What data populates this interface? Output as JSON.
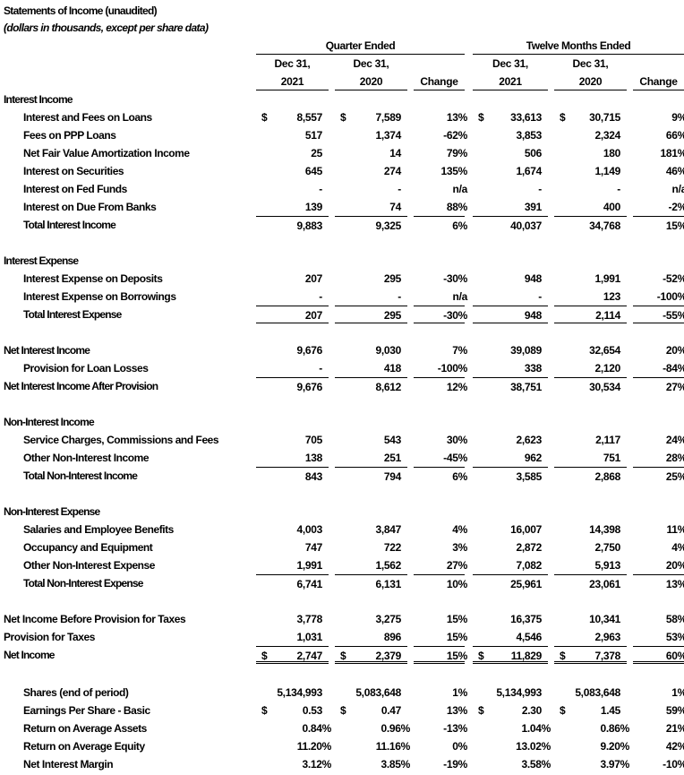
{
  "title": "Statements of Income (unaudited)",
  "subtitle": "(dollars in thousands, except per share data)",
  "header": {
    "groups": [
      "Quarter Ended",
      "Twelve Months Ended"
    ],
    "line1": [
      "Dec 31,",
      "Dec 31,",
      "",
      "Dec 31,",
      "Dec 31,",
      ""
    ],
    "line2": [
      "2021",
      "2020",
      "Change",
      "2021",
      "2020",
      "Change"
    ]
  },
  "rows": [
    {
      "kind": "section",
      "label": "Interest Income"
    },
    {
      "kind": "item",
      "label": "Interest and Fees on Loans",
      "dollar": true,
      "values": [
        "8,557",
        "7,589",
        "13%",
        "33,613",
        "30,715",
        "9%"
      ]
    },
    {
      "kind": "item",
      "label": "Fees on PPP Loans",
      "values": [
        "517",
        "1,374",
        "-62%",
        "3,853",
        "2,324",
        "66%"
      ]
    },
    {
      "kind": "item",
      "label": "Net Fair Value Amortization Income",
      "values": [
        "25",
        "14",
        "79%",
        "506",
        "180",
        "181%"
      ]
    },
    {
      "kind": "item",
      "label": "Interest on Securities",
      "values": [
        "645",
        "274",
        "135%",
        "1,674",
        "1,149",
        "46%"
      ]
    },
    {
      "kind": "item",
      "label": "Interest on Fed Funds",
      "values": [
        "-",
        "-",
        "n/a",
        "-",
        "-",
        "n/a"
      ]
    },
    {
      "kind": "item",
      "label": "Interest on Due From Banks",
      "values": [
        "139",
        "74",
        "88%",
        "391",
        "400",
        "-2%"
      ]
    },
    {
      "kind": "total",
      "label": "Total Interest Income",
      "values": [
        "9,883",
        "9,325",
        "6%",
        "40,037",
        "34,768",
        "15%"
      ]
    },
    {
      "kind": "blank"
    },
    {
      "kind": "section",
      "label": "Interest Expense"
    },
    {
      "kind": "item",
      "label": "Interest Expense on Deposits",
      "values": [
        "207",
        "295",
        "-30%",
        "948",
        "1,991",
        "-52%"
      ]
    },
    {
      "kind": "item",
      "label": "Interest Expense on Borrowings",
      "values": [
        "-",
        "-",
        "n/a",
        "-",
        "123",
        "-100%"
      ]
    },
    {
      "kind": "total",
      "label": "Total Interest Expense",
      "rule_below": "single",
      "values": [
        "207",
        "295",
        "-30%",
        "948",
        "2,114",
        "-55%"
      ]
    },
    {
      "kind": "blank"
    },
    {
      "kind": "major",
      "label": "Net Interest Income",
      "values": [
        "9,676",
        "9,030",
        "7%",
        "39,089",
        "32,654",
        "20%"
      ]
    },
    {
      "kind": "item",
      "label": "Provision for Loan Losses",
      "values": [
        "-",
        "418",
        "-100%",
        "338",
        "2,120",
        "-84%"
      ]
    },
    {
      "kind": "majortotal",
      "label": "Net Interest Income After Provision",
      "values": [
        "9,676",
        "8,612",
        "12%",
        "38,751",
        "30,534",
        "27%"
      ]
    },
    {
      "kind": "blank"
    },
    {
      "kind": "section",
      "label": "Non-Interest Income"
    },
    {
      "kind": "item",
      "label": "Service Charges, Commissions and Fees",
      "values": [
        "705",
        "543",
        "30%",
        "2,623",
        "2,117",
        "24%"
      ]
    },
    {
      "kind": "item",
      "label": "Other Non-Interest Income",
      "values": [
        "138",
        "251",
        "-45%",
        "962",
        "751",
        "28%"
      ]
    },
    {
      "kind": "total",
      "label": "Total Non-Interest Income",
      "values": [
        "843",
        "794",
        "6%",
        "3,585",
        "2,868",
        "25%"
      ]
    },
    {
      "kind": "blank"
    },
    {
      "kind": "section",
      "label": "Non-Interest Expense"
    },
    {
      "kind": "item",
      "label": "Salaries and Employee Benefits",
      "values": [
        "4,003",
        "3,847",
        "4%",
        "16,007",
        "14,398",
        "11%"
      ]
    },
    {
      "kind": "item",
      "label": "Occupancy and Equipment",
      "values": [
        "747",
        "722",
        "3%",
        "2,872",
        "2,750",
        "4%"
      ]
    },
    {
      "kind": "item",
      "label": "Other Non-Interest Expense",
      "values": [
        "1,991",
        "1,562",
        "27%",
        "7,082",
        "5,913",
        "20%"
      ]
    },
    {
      "kind": "total",
      "label": "Total Non-Interest Expense",
      "values": [
        "6,741",
        "6,131",
        "10%",
        "25,961",
        "23,061",
        "13%"
      ]
    },
    {
      "kind": "blank"
    },
    {
      "kind": "flat",
      "label": "Net Income Before Provision for Taxes",
      "values": [
        "3,778",
        "3,275",
        "15%",
        "16,375",
        "10,341",
        "58%"
      ]
    },
    {
      "kind": "flat",
      "label": "Provision for Taxes",
      "values": [
        "1,031",
        "896",
        "15%",
        "4,546",
        "2,963",
        "53%"
      ]
    },
    {
      "kind": "majortotal",
      "label": "Net Income",
      "dollar": true,
      "rule_below": "double",
      "values": [
        "2,747",
        "2,379",
        "15%",
        "11,829",
        "7,378",
        "60%"
      ]
    },
    {
      "kind": "blank"
    },
    {
      "kind": "item",
      "label": "Shares (end of period)",
      "values": [
        "5,134,993",
        "5,083,648",
        "1%",
        "5,134,993",
        "5,083,648",
        "1%"
      ]
    },
    {
      "kind": "item",
      "label": "Earnings Per Share - Basic",
      "dollar": true,
      "values": [
        "0.53",
        "0.47",
        "13%",
        "2.30",
        "1.45",
        "59%"
      ]
    },
    {
      "kind": "item",
      "label": "Return on Average Assets",
      "pct": true,
      "values": [
        "0.84%",
        "0.96%",
        "-13%",
        "1.04%",
        "0.86%",
        "21%"
      ]
    },
    {
      "kind": "item",
      "label": "Return on Average Equity",
      "pct": true,
      "values": [
        "11.20%",
        "11.16%",
        "0%",
        "13.02%",
        "9.20%",
        "42%"
      ]
    },
    {
      "kind": "item",
      "label": "Net Interest Margin",
      "pct": true,
      "values": [
        "3.12%",
        "3.85%",
        "-19%",
        "3.58%",
        "3.97%",
        "-10%"
      ]
    }
  ]
}
